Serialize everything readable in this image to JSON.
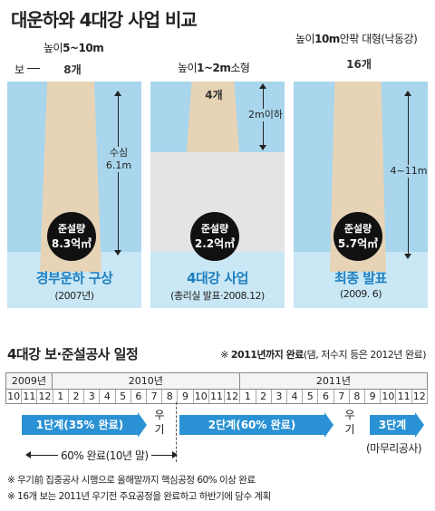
{
  "title": "대운하와 4대강 사업 비교",
  "panels": [
    {
      "height_label_prefix": "높이",
      "height_label_value": "5~10m",
      "weir_label": "보",
      "count": "8개",
      "depth_label": "수심",
      "depth_value": "6.1m",
      "dredge_label": "준설량",
      "dredge_value": "8.3억㎥",
      "name": "경부운하 구상",
      "sub": "(2007년)"
    },
    {
      "height_label_prefix": "높이",
      "height_label_value": "1~2m",
      "height_label_suffix": "소형",
      "count": "4개",
      "depth_value": "2m이하",
      "dredge_label": "준설량",
      "dredge_value": "2.2억㎥",
      "name": "4대강 사업",
      "sub": "(총리실 발표·2008.12)"
    },
    {
      "height_label_prefix": "높이",
      "height_label_value": "10m",
      "height_label_suffix": "안팎 대형(낙동강)",
      "count": "16개",
      "depth_value": "4~11m",
      "dredge_label": "준설량",
      "dredge_value": "5.7억㎥",
      "name": "최종 발표",
      "sub": "(2009. 6)"
    }
  ],
  "schedule": {
    "title": "4대강 보·준설공사 일정",
    "note_prefix": "※ ",
    "note_bold": "2011년까지 완료",
    "note_rest": "(댐, 저수지 등은 2012년 완료)",
    "years": [
      "2009년",
      "2010년",
      "2011년"
    ],
    "months": [
      "10",
      "11",
      "12",
      "1",
      "2",
      "3",
      "4",
      "5",
      "6",
      "7",
      "8",
      "9",
      "10",
      "11",
      "12",
      "1",
      "2",
      "3",
      "4",
      "5",
      "6",
      "7",
      "8",
      "9",
      "10",
      "11",
      "12"
    ],
    "phase1": "1단계(35% 완료)",
    "stop1": "우기",
    "phase2": "2단계(60% 완료)",
    "stop2": "우기",
    "phase3": "3단계",
    "phase3_sub": "(마무리공사)",
    "span_label": "60% 완료(10년 말)"
  },
  "footnotes": [
    "※ 우기前 집중공사 시행으로 올해말까지 핵심공정 60% 이상 완료",
    "※ 16개 보는 2011년 우기전 주요공정을 완료하고 하반기에 담수 계획"
  ],
  "colors": {
    "water": "#a9d6ec",
    "water_bottom": "#c9e7f5",
    "weir": "#e7d3b6",
    "accent": "#2a92d4",
    "panel_title": "#1f7fbf"
  }
}
